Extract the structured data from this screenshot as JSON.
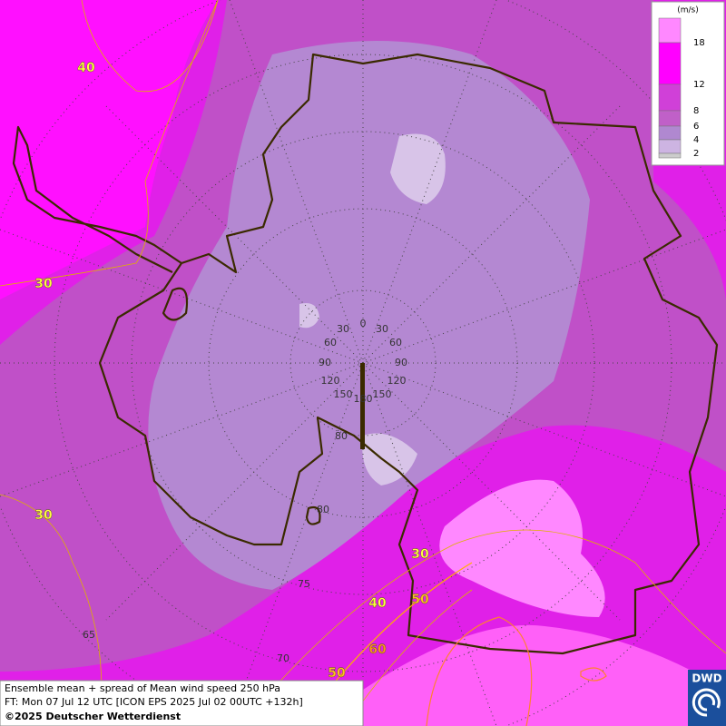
{
  "legend": {
    "unit": "(m/s)",
    "levels": [
      18,
      12,
      8,
      6,
      4,
      2
    ],
    "colors": [
      "#ff88ff",
      "#ff00ff",
      "#d040d8",
      "#c060c8",
      "#b088d0",
      "#cdb4e2",
      "#cccccc"
    ]
  },
  "grid_labels": [
    0,
    30,
    30,
    60,
    60,
    90,
    90,
    120,
    120,
    150,
    150,
    180,
    80,
    80,
    75,
    70,
    65
  ],
  "contour_labels": [
    40,
    30,
    30,
    30,
    40,
    50,
    60,
    50
  ],
  "footer": {
    "line1": "Ensemble mean + spread of Mean wind speed 250 hPa",
    "line2": "FT: Mon 07 Jul 12 UTC [ICON EPS 2025 Jul 02 00UTC +132h]",
    "line3": "©2025 Deutscher Wetterdienst"
  },
  "logo": "DWD"
}
